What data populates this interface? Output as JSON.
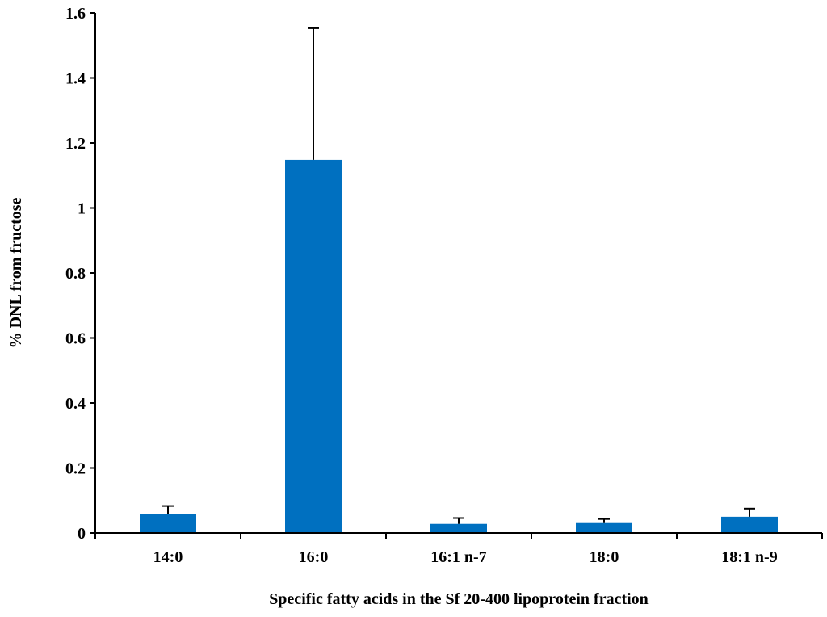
{
  "chart_data": {
    "type": "bar",
    "title": "",
    "xlabel": "Specific fatty acids in the Sf 20-400 lipoprotein fraction",
    "ylabel": "% DNL from fructose",
    "ylim": [
      0,
      1.6
    ],
    "yticks": [
      0,
      0.2,
      0.4,
      0.6,
      0.8,
      1,
      1.2,
      1.4,
      1.6
    ],
    "ytick_labels": [
      "0",
      "0.2",
      "0.4",
      "0.6",
      "0.8",
      "1",
      "1.2",
      "1.4",
      "1.6"
    ],
    "categories": [
      "14:0",
      "16:0",
      "16:1 n-7",
      "18:0",
      "18:1 n-9"
    ],
    "values": [
      0.058,
      1.148,
      0.028,
      0.033,
      0.05
    ],
    "error_upper": [
      0.025,
      0.405,
      0.018,
      0.01,
      0.025
    ],
    "grid": false,
    "legend": "none",
    "colors": {
      "bar": "#0070C0"
    }
  }
}
